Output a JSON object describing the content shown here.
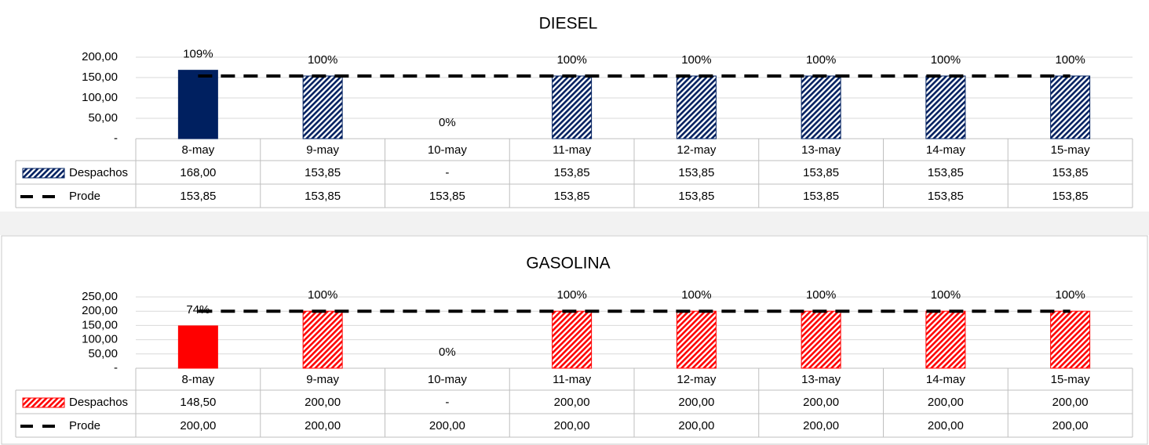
{
  "chart_data": [
    {
      "type": "bar",
      "title": "DIESEL",
      "categories": [
        "8-may",
        "9-may",
        "10-may",
        "11-may",
        "12-may",
        "13-may",
        "14-may",
        "15-may"
      ],
      "series": [
        {
          "name": "Despachos",
          "type": "bar",
          "color": "#002060",
          "pattern": "hatch",
          "solid_points": [
            0
          ],
          "values": [
            168,
            153.85,
            0,
            153.85,
            153.85,
            153.85,
            153.85,
            153.85
          ],
          "value_labels": [
            "168,00",
            "153,85",
            "-",
            "153,85",
            "153,85",
            "153,85",
            "153,85",
            "153,85"
          ]
        },
        {
          "name": "Prode",
          "type": "line",
          "color": "#000000",
          "dashed": true,
          "values": [
            153.85,
            153.85,
            153.85,
            153.85,
            153.85,
            153.85,
            153.85,
            153.85
          ],
          "value_labels": [
            "153,85",
            "153,85",
            "153,85",
            "153,85",
            "153,85",
            "153,85",
            "153,85",
            "153,85"
          ]
        }
      ],
      "annotations": [
        "109%",
        "100%",
        "0%",
        "100%",
        "100%",
        "100%",
        "100%",
        "100%"
      ],
      "ylim": [
        0,
        200
      ],
      "yticks": [
        {
          "value": 0,
          "label": "-"
        },
        {
          "value": 50,
          "label": "50,00"
        },
        {
          "value": 100,
          "label": "100,00"
        },
        {
          "value": 150,
          "label": "150,00"
        },
        {
          "value": 200,
          "label": "200,00"
        }
      ],
      "grid": true,
      "data_table": true
    },
    {
      "type": "bar",
      "title": "GASOLINA",
      "categories": [
        "8-may",
        "9-may",
        "10-may",
        "11-may",
        "12-may",
        "13-may",
        "14-may",
        "15-may"
      ],
      "series": [
        {
          "name": "Despachos",
          "type": "bar",
          "color": "#ff0000",
          "pattern": "hatch",
          "solid_points": [
            0
          ],
          "values": [
            148.5,
            200,
            0,
            200,
            200,
            200,
            200,
            200
          ],
          "value_labels": [
            "148,50",
            "200,00",
            "-",
            "200,00",
            "200,00",
            "200,00",
            "200,00",
            "200,00"
          ]
        },
        {
          "name": "Prode",
          "type": "line",
          "color": "#000000",
          "dashed": true,
          "values": [
            200,
            200,
            200,
            200,
            200,
            200,
            200,
            200
          ],
          "value_labels": [
            "200,00",
            "200,00",
            "200,00",
            "200,00",
            "200,00",
            "200,00",
            "200,00",
            "200,00"
          ]
        }
      ],
      "annotations": [
        "74%",
        "100%",
        "0%",
        "100%",
        "100%",
        "100%",
        "100%",
        "100%"
      ],
      "ylim": [
        0,
        250
      ],
      "yticks": [
        {
          "value": 0,
          "label": "-"
        },
        {
          "value": 50,
          "label": "50,00"
        },
        {
          "value": 100,
          "label": "100,00"
        },
        {
          "value": 150,
          "label": "150,00"
        },
        {
          "value": 200,
          "label": "200,00"
        },
        {
          "value": 250,
          "label": "250,00"
        }
      ],
      "grid": true,
      "data_table": true
    }
  ]
}
